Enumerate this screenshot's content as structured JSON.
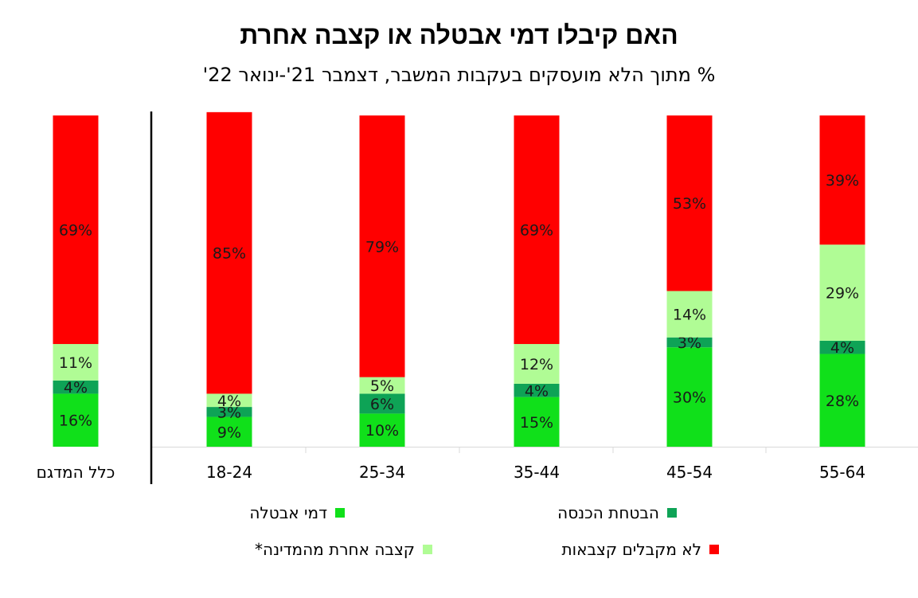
{
  "title": "האם קיבלו דמי אבטלה או קצבה אחרת",
  "subtitle": "% מתוך הלא מועסקים בעקבות המשבר, דצמבר 21'-ינואר 22'",
  "colors": {
    "unemployment": "#10e01a",
    "income_support": "#0ea356",
    "other_state": "#b0fc95",
    "none": "#ff0000"
  },
  "legend": [
    {
      "key": "unemployment",
      "label": "דמי אבטלה"
    },
    {
      "key": "income_support",
      "label": "הבטחת הכנסה"
    },
    {
      "key": "other_state",
      "label": "קצבה אחרת מהמדינה*"
    },
    {
      "key": "none",
      "label": "לא מקבלים קצבאות"
    }
  ],
  "chart_data": {
    "type": "bar",
    "stacked": true,
    "categories": [
      "55-64",
      "45-54",
      "35-44",
      "25-34",
      "18-24",
      "כלל המדגם"
    ],
    "series": [
      {
        "key": "unemployment",
        "name": "דמי אבטלה",
        "values": [
          28,
          30,
          15,
          10,
          9,
          16
        ]
      },
      {
        "key": "income_support",
        "name": "הבטחת הכנסה",
        "values": [
          4,
          3,
          4,
          6,
          3,
          4
        ]
      },
      {
        "key": "other_state",
        "name": "קצבה אחרת מהמדינה*",
        "values": [
          29,
          14,
          12,
          5,
          4,
          11
        ]
      },
      {
        "key": "none",
        "name": "לא מקבלים קצבאות",
        "values": [
          39,
          53,
          69,
          79,
          85,
          69
        ]
      }
    ],
    "ylim": [
      0,
      100
    ],
    "value_suffix": "%",
    "grid": false
  }
}
